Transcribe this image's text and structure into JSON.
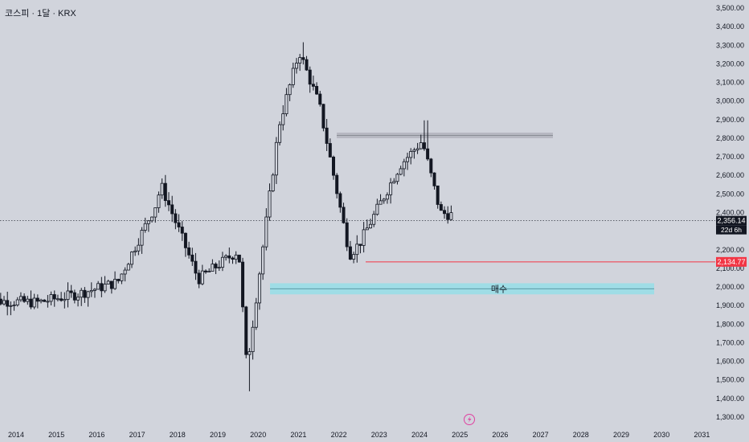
{
  "header": {
    "title": "코스피 · 1달 · KRX"
  },
  "colors": {
    "background": "#d1d4dc",
    "up_body": "#d1d4dc",
    "down_body": "#131722",
    "wick": "#131722",
    "support_line": "#f23645",
    "buy_zone_fill": "#9fdde6",
    "buy_zone_line": "#5b9aa6",
    "resistance_zone": "#b2b5be"
  },
  "chart_data": {
    "type": "candlestick",
    "interval": "1 month",
    "x_ticks": [
      "2014",
      "2015",
      "2016",
      "2017",
      "2018",
      "2019",
      "2020",
      "2021",
      "2022",
      "2023",
      "2024",
      "2025",
      "2026",
      "2027",
      "2028",
      "2029",
      "2030",
      "2031"
    ],
    "y_ticks": [
      "1,300.00",
      "1,400.00",
      "1,500.00",
      "1,600.00",
      "1,700.00",
      "1,800.00",
      "1,900.00",
      "2,000.00",
      "2,100.00",
      "2,200.00",
      "2,300.00",
      "2,400.00",
      "2,500.00",
      "2,600.00",
      "2,700.00",
      "2,800.00",
      "2,900.00",
      "3,000.00",
      "3,100.00",
      "3,200.00",
      "3,300.00",
      "3,400.00",
      "3,500.00"
    ],
    "ylim": [
      1300,
      3500
    ],
    "yearly_close": {
      "2014": 1916,
      "2015": 1961,
      "2016": 2026,
      "2017": 2467,
      "2018": 2041,
      "2019": 2197,
      "2020": 2873,
      "2021": 2977,
      "2022": 2236,
      "2023": 2655,
      "2024": 2399,
      "2025": 2356
    },
    "extremes": [
      {
        "label": "2020 low",
        "value": 1439
      },
      {
        "label": "2021 high",
        "value": 3316
      },
      {
        "label": "2024 high",
        "value": 2896
      },
      {
        "label": "2022 low",
        "value": 2134.77
      }
    ],
    "current_price": {
      "value": 2356.14,
      "label": "2,356.14",
      "countdown": "22d 6h"
    },
    "support_line": {
      "value": 2134.77,
      "label": "2,134.77"
    },
    "resistance_zone": {
      "from": 2800,
      "to": 2830
    },
    "buy_zone": {
      "from": 1960,
      "to": 2020,
      "label": "매수"
    }
  }
}
